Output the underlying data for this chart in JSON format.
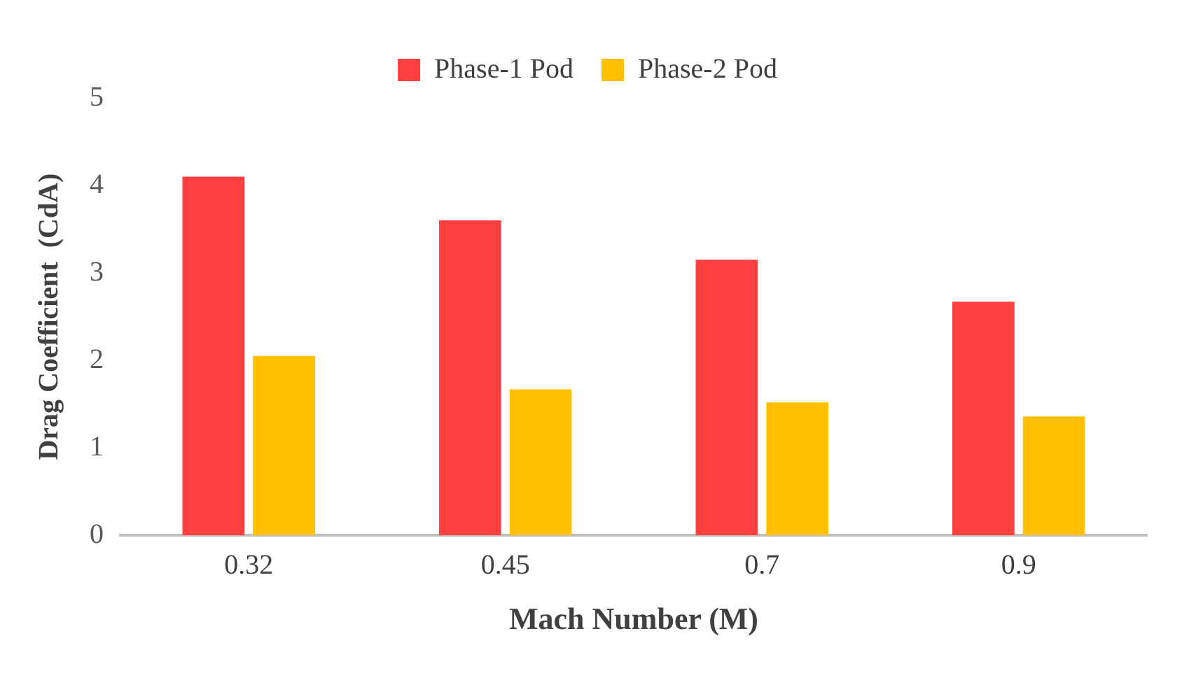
{
  "chart_data": {
    "type": "bar",
    "xlabel": "Mach Number (M)",
    "ylabel": "Drag Coefficient  (CdA)",
    "categories": [
      "0.32",
      "0.45",
      "0.7",
      "0.9"
    ],
    "series": [
      {
        "name": "Phase-1 Pod",
        "color": "#ff4040",
        "values": [
          4.1,
          3.6,
          3.15,
          2.67
        ]
      },
      {
        "name": "Phase-2 Pod",
        "color": "#ffc000",
        "values": [
          2.05,
          1.67,
          1.52,
          1.36
        ]
      }
    ],
    "ylim": [
      0,
      5
    ],
    "yticks": [
      0,
      1,
      2,
      3,
      4,
      5
    ],
    "grid": false,
    "legend": "top"
  }
}
